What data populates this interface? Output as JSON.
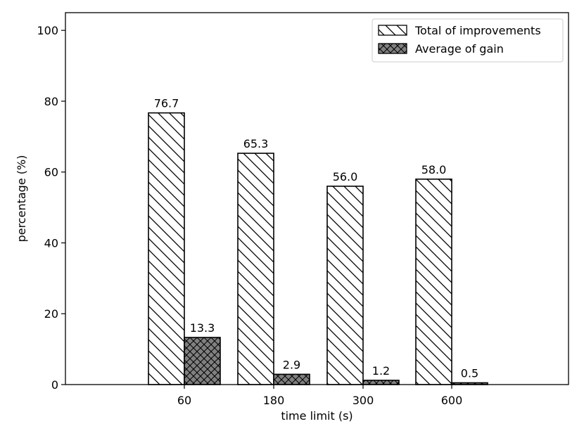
{
  "chart_data": {
    "type": "bar",
    "title": "",
    "xlabel": "time limit (s)",
    "ylabel": "percentage (%)",
    "categories": [
      "60",
      "180",
      "300",
      "600"
    ],
    "series": [
      {
        "name": "Total of improvements",
        "values": [
          76.7,
          65.3,
          56.0,
          58.0
        ],
        "labels": [
          "76.7",
          "65.3",
          "56.0",
          "58.0"
        ],
        "fill": "#ffffff",
        "hatch": "diagonal"
      },
      {
        "name": "Average of gain",
        "values": [
          13.3,
          2.9,
          1.2,
          0.5
        ],
        "labels": [
          "13.3",
          "2.9",
          "1.2",
          "0.5"
        ],
        "fill": "#808080",
        "hatch": "crosshatch"
      }
    ],
    "ylim": [
      0,
      105
    ],
    "yticks": [
      0,
      20,
      40,
      60,
      80,
      100
    ],
    "grid": false,
    "legend": "top-right"
  }
}
